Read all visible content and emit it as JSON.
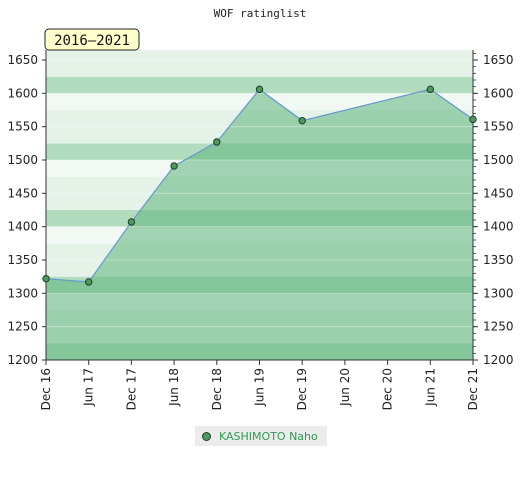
{
  "chart_data": {
    "type": "area",
    "title": "WOF ratinglist",
    "period_label": "2016–2021",
    "x_tick_labels": [
      "Dec 16",
      "Jun 17",
      "Dec 17",
      "Jun 18",
      "Dec 18",
      "Jun 19",
      "Dec 19",
      "Jun 20",
      "Dec 20",
      "Jun 21",
      "Dec 21"
    ],
    "y_ticks": [
      1200,
      1250,
      1300,
      1350,
      1400,
      1450,
      1500,
      1550,
      1600,
      1650
    ],
    "ylim": [
      1200,
      1665
    ],
    "series": [
      {
        "name": "KASHIMOTO Naho",
        "points": [
          {
            "x": "Dec 16",
            "y": 1322
          },
          {
            "x": "Jun 17",
            "y": 1317
          },
          {
            "x": "Dec 17",
            "y": 1407
          },
          {
            "x": "Jun 18",
            "y": 1491
          },
          {
            "x": "Dec 18",
            "y": 1527
          },
          {
            "x": "Jun 19",
            "y": 1606
          },
          {
            "x": "Dec 19",
            "y": 1559
          },
          {
            "x": "Jun 21",
            "y": 1606
          },
          {
            "x": "Dec 21",
            "y": 1561
          }
        ]
      }
    ],
    "grid": true,
    "legend_position": "bottom-center",
    "colors": {
      "line": "#6699cc",
      "marker_fill": "#4c9a5f",
      "marker_stroke": "#1f3d26",
      "fill": "#5cb57a",
      "band_dark": "#b2dcbe",
      "band_light": "#e4f2e8",
      "band_pale": "#f2f9f4",
      "legend_text": "#2e9a50",
      "range_box": "#ffffcc"
    }
  }
}
